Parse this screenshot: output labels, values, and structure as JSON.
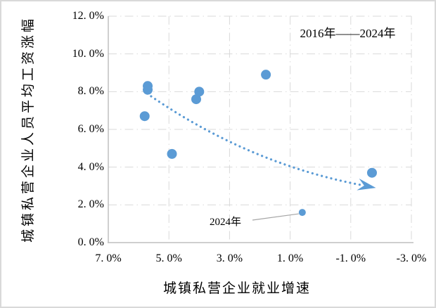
{
  "chart_data": {
    "type": "scatter",
    "range_annotation": "2016年——2024年",
    "xlabel": "城镇私营企业就业增速",
    "ylabel": "城镇私营企业人员平均工资涨幅",
    "x_axis": {
      "min": 7.0,
      "max": -3.0,
      "reversed": true,
      "tick_values": [
        7,
        5,
        3,
        1,
        -1,
        -3
      ],
      "tick_labels": [
        "7. 0%",
        "5. 0%",
        "3. 0%",
        "1. 0%",
        "-1. 0%",
        "-3. 0%"
      ]
    },
    "y_axis": {
      "min": 0.0,
      "max": 12.0,
      "tick_values": [
        12,
        10,
        8,
        6,
        4,
        2,
        0
      ],
      "tick_labels": [
        "12. 0%",
        "10. 0%",
        "8. 0%",
        "6. 0%",
        "4. 0%",
        "2. 0%",
        "0. 0%"
      ]
    },
    "points": [
      {
        "x": 5.7,
        "y": 8.3
      },
      {
        "x": 5.7,
        "y": 8.1
      },
      {
        "x": 5.8,
        "y": 6.7
      },
      {
        "x": 4.9,
        "y": 4.7
      },
      {
        "x": 4.1,
        "y": 7.6
      },
      {
        "x": 4.0,
        "y": 8.0
      },
      {
        "x": 1.8,
        "y": 8.9
      },
      {
        "x": 0.6,
        "y": 1.6
      },
      {
        "x": -1.7,
        "y": 3.7
      }
    ],
    "point_annotation": {
      "text": "2024年",
      "target_index": 7
    },
    "trend_arrow": {
      "from": {
        "x": 5.72,
        "y": 7.9
      },
      "control": {
        "x": 2.4,
        "y": 4.2
      },
      "to": {
        "x": -1.35,
        "y": 3.05
      }
    },
    "grid": true,
    "legend": "none",
    "colors": {
      "marker": "#5B9BD5",
      "trend": "#5B9BD5",
      "grid": "#D9D9D9",
      "axis": "#BFBFBF",
      "leader": "#A6A6A6",
      "text": "#000000",
      "border": "#D9D9D9",
      "background": "#FFFFFF"
    }
  }
}
